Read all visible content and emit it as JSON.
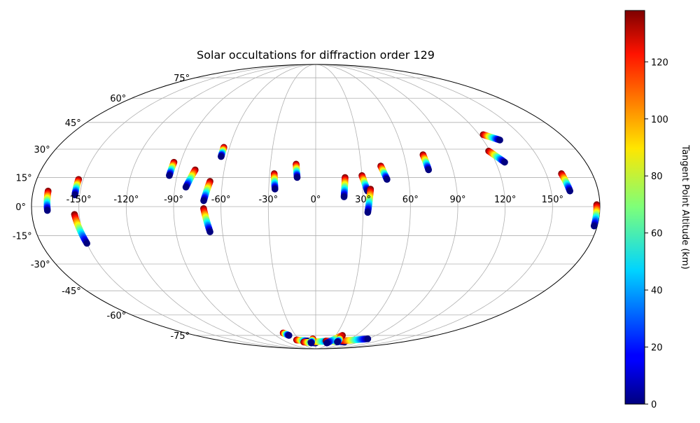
{
  "chart_data": {
    "type": "scatter",
    "projection": "mollweide",
    "title": "Solar occultations for diffraction order 129",
    "xlabel": "",
    "ylabel": "",
    "xlim": [
      -180,
      180
    ],
    "ylim": [
      -90,
      90
    ],
    "grid": true,
    "lon_tick_labels": [
      "-150°",
      "-120°",
      "-90°",
      "-60°",
      "-30°",
      "0°",
      "30°",
      "60°",
      "90°",
      "120°",
      "150°"
    ],
    "lat_tick_labels": [
      "-75°",
      "-60°",
      "-45°",
      "-30°",
      "-15°",
      "0°",
      "15°",
      "30°",
      "45°",
      "60°",
      "75°"
    ],
    "colorbar": {
      "label": "Tangent Point Altitude (km)",
      "colormap": "jet",
      "range": [
        0,
        138
      ],
      "tick_labels": [
        "0",
        "20",
        "40",
        "60",
        "80",
        "100",
        "120"
      ]
    },
    "tracks": [
      {
        "lon_top": -170.5,
        "lat_top": 8,
        "lon_bot": -170,
        "lat_bot": -2
      },
      {
        "lon_top": -153,
        "lat_top": 14,
        "lon_bot": -153,
        "lat_bot": 6
      },
      {
        "lon_top": -153,
        "lat_top": -4,
        "lon_bot": -150,
        "lat_bot": -19
      },
      {
        "lon_top": -94.5,
        "lat_top": 23,
        "lon_bot": -95,
        "lat_bot": 16
      },
      {
        "lon_top": -79,
        "lat_top": 19,
        "lon_bot": -83,
        "lat_bot": 10
      },
      {
        "lon_top": -64,
        "lat_top": 31,
        "lon_bot": -64,
        "lat_bot": 26
      },
      {
        "lon_top": -68,
        "lat_top": 13,
        "lon_bot": -71,
        "lat_bot": 3
      },
      {
        "lon_top": -71,
        "lat_top": -1,
        "lon_bot": -68,
        "lat_bot": -13
      },
      {
        "lon_top": -27,
        "lat_top": 17,
        "lon_bot": -26,
        "lat_bot": 9
      },
      {
        "lon_top": -13,
        "lat_top": 22,
        "lon_bot": -12,
        "lat_bot": 15
      },
      {
        "lon_top": 19,
        "lat_top": 15,
        "lon_bot": 18,
        "lat_bot": 5
      },
      {
        "lon_top": 30,
        "lat_top": 16,
        "lon_bot": 33,
        "lat_bot": 8
      },
      {
        "lon_top": 35,
        "lat_top": 9,
        "lon_bot": 33,
        "lat_bot": -3
      },
      {
        "lon_top": 43,
        "lat_top": 21,
        "lon_bot": 46,
        "lat_bot": 14
      },
      {
        "lon_top": 73,
        "lat_top": 27,
        "lon_bot": 74,
        "lat_bot": 19
      },
      {
        "lon_top": 123,
        "lat_top": 38,
        "lon_bot": 132,
        "lat_bot": 35
      },
      {
        "lon_top": 119,
        "lat_top": 29,
        "lon_bot": 126,
        "lat_bot": 23
      },
      {
        "lon_top": 160,
        "lat_top": 17,
        "lon_bot": 162,
        "lat_bot": 8
      },
      {
        "lon_top": 178,
        "lat_top": 1,
        "lon_bot": 178,
        "lat_bot": -10
      },
      {
        "lon_top": -45,
        "lat_top": -73,
        "lon_bot": -40,
        "lat_bot": -75
      },
      {
        "lon_top": -35,
        "lat_top": -79,
        "lon_bot": -15,
        "lat_bot": -80
      },
      {
        "lon_top": -25,
        "lat_top": -81,
        "lon_bot": 0,
        "lat_bot": -82
      },
      {
        "lon_top": -10,
        "lat_top": -81,
        "lon_bot": 30,
        "lat_bot": -80
      },
      {
        "lon_top": 20,
        "lat_top": -80,
        "lon_bot": 60,
        "lat_bot": -81
      },
      {
        "lon_top": 50,
        "lat_top": -80,
        "lon_bot": 90,
        "lat_bot": -78
      },
      {
        "lon_top": 40,
        "lat_top": -75,
        "lon_bot": 25,
        "lat_bot": -82
      },
      {
        "lon_top": -5,
        "lat_top": -78,
        "lon_bot": -10,
        "lat_bot": -82
      },
      {
        "lon_top": 40,
        "lat_top": -77,
        "lon_bot": 45,
        "lat_bot": -81
      }
    ]
  }
}
